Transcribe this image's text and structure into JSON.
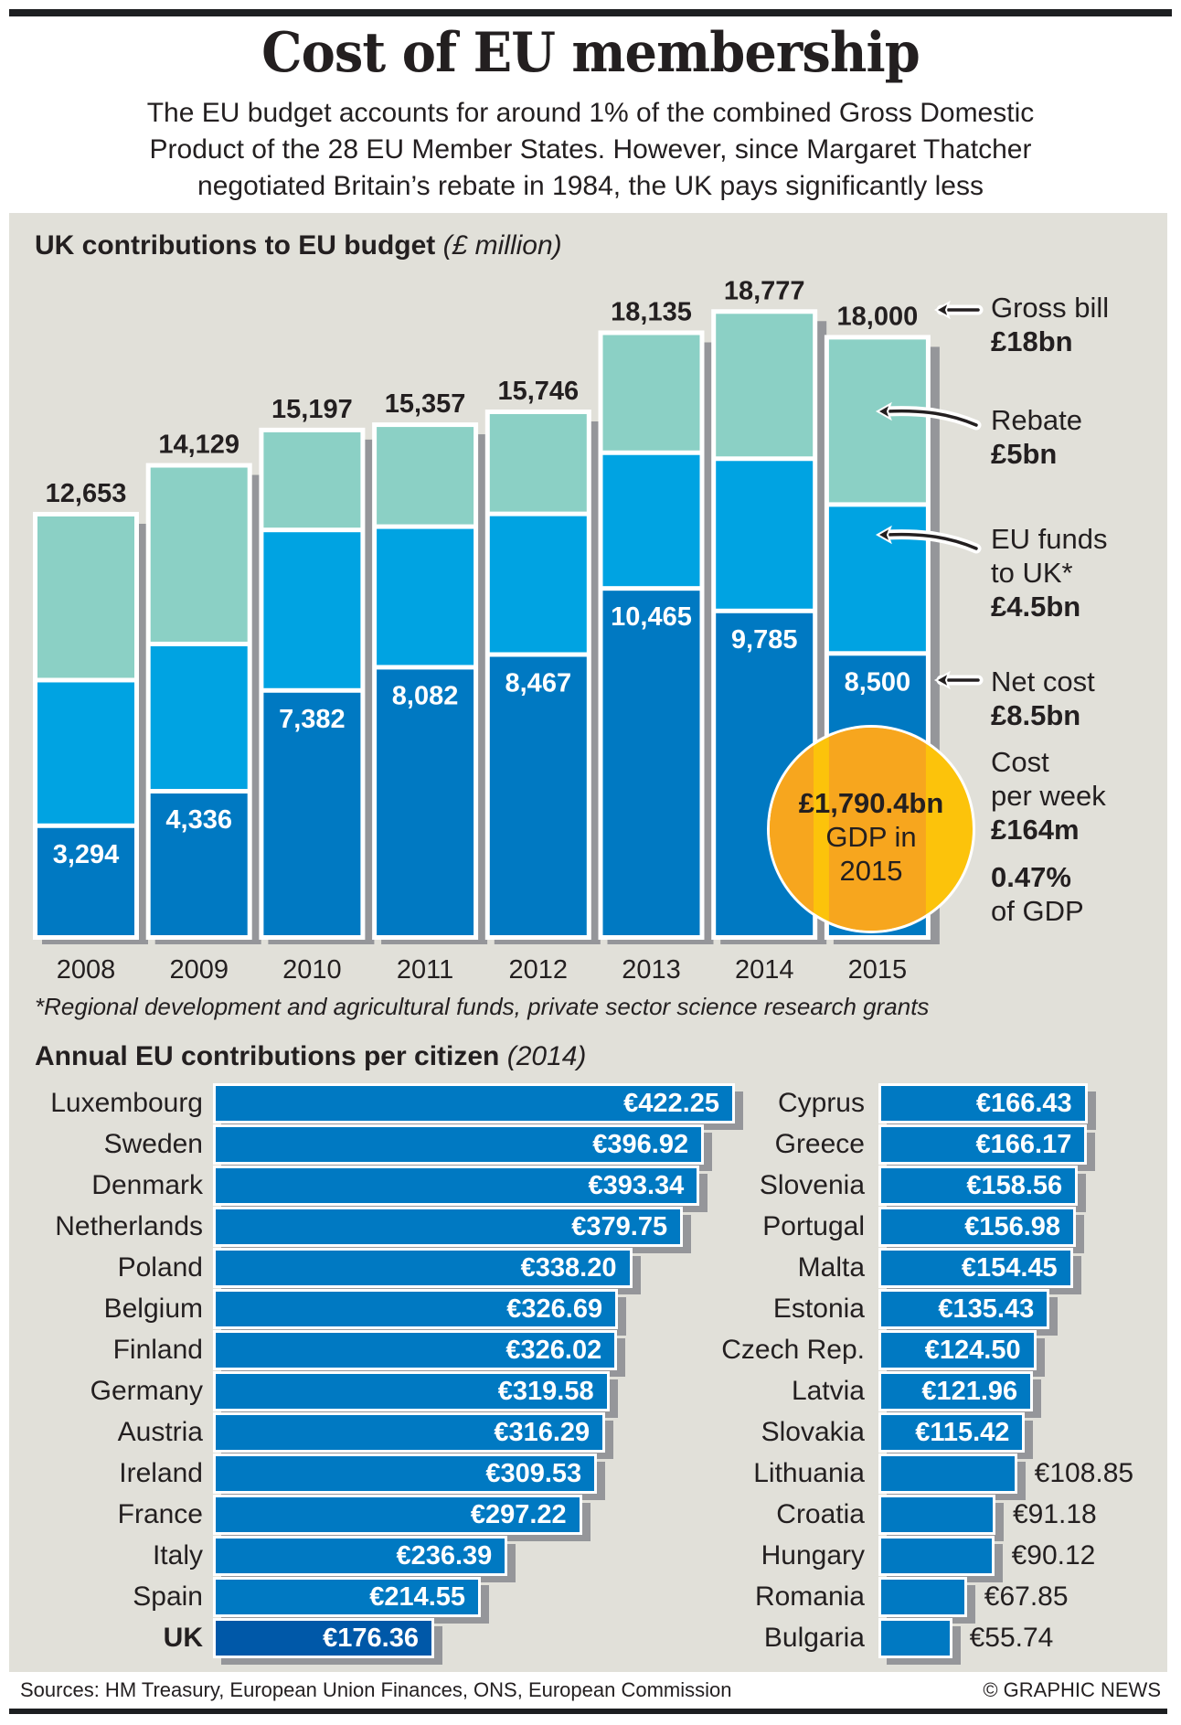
{
  "header": {
    "title": "Cost of EU membership",
    "subtitle_lines": [
      "The EU budget accounts for around 1% of the combined Gross Domestic",
      "Product of the 28 EU Member States. However, since Margaret Thatcher",
      "negotiated Britain’s rebate in 1984, the UK pays significantly less"
    ]
  },
  "colors": {
    "rebate": "#8bd0c5",
    "eu_funds": "#00a3e2",
    "net_cost": "#0079c2",
    "uk_highlight": "#0058a8",
    "panel": "#e1e0d9",
    "shadow": "#95969a",
    "bubble_yellow": "#fcc30b",
    "bubble_orange": "#f7a61e"
  },
  "chart_data": [
    {
      "type": "bar",
      "stacked": true,
      "title": "UK contributions to EU budget",
      "title_unit": "(£ million)",
      "categories": [
        "2008",
        "2009",
        "2010",
        "2011",
        "2012",
        "2013",
        "2014",
        "2015"
      ],
      "totals": [
        12653,
        14129,
        15197,
        15357,
        15746,
        18135,
        18777,
        18000
      ],
      "series": [
        {
          "name": "Net cost",
          "values": [
            3294,
            4336,
            7382,
            8082,
            8467,
            10465,
            9785,
            8500
          ]
        },
        {
          "name": "EU funds to UK*",
          "values_estimated": [
            4400,
            4450,
            4850,
            4250,
            4250,
            4100,
            4600,
            4500
          ]
        },
        {
          "name": "Rebate",
          "values_estimated": [
            4960,
            5340,
            2970,
            3030,
            3030,
            3570,
            4390,
            5000
          ]
        }
      ],
      "total_labels": [
        "12,653",
        "14,129",
        "15,197",
        "15,357",
        "15,746",
        "18,135",
        "18,777",
        "18,000"
      ],
      "net_labels": [
        "3,294",
        "4,336",
        "7,382",
        "8,082",
        "8,467",
        "10,465",
        "9,785",
        "8,500"
      ],
      "legend_placement": "right",
      "annotations": [
        {
          "label": "Gross bill",
          "value": "£18bn"
        },
        {
          "label": "Rebate",
          "value": "£5bn"
        },
        {
          "label_lines": [
            "EU funds",
            "to UK*"
          ],
          "value": "£4.5bn"
        },
        {
          "label": "Net cost",
          "value": "£8.5bn"
        },
        {
          "label_lines": [
            "Cost",
            "per week"
          ],
          "value": "£164m"
        },
        {
          "value": "0.47%",
          "label": "of GDP"
        }
      ],
      "bubble": {
        "value": "£1,790.4bn",
        "line2": "GDP in",
        "line3": "2015"
      },
      "footnote": "*Regional development and agricultural funds, private sector science research grants"
    },
    {
      "type": "bar",
      "orientation": "horizontal",
      "title": "Annual EU contributions per citizen",
      "title_unit": "(2014)",
      "currency": "€",
      "left_column": [
        {
          "country": "Luxembourg",
          "value": 422.25,
          "label": "€422.25"
        },
        {
          "country": "Sweden",
          "value": 396.92,
          "label": "€396.92"
        },
        {
          "country": "Denmark",
          "value": 393.34,
          "label": "€393.34"
        },
        {
          "country": "Netherlands",
          "value": 379.75,
          "label": "€379.75"
        },
        {
          "country": "Poland",
          "value": 338.2,
          "label": "€338.20"
        },
        {
          "country": "Belgium",
          "value": 326.69,
          "label": "€326.69"
        },
        {
          "country": "Finland",
          "value": 326.02,
          "label": "€326.02"
        },
        {
          "country": "Germany",
          "value": 319.58,
          "label": "€319.58"
        },
        {
          "country": "Austria",
          "value": 316.29,
          "label": "€316.29"
        },
        {
          "country": "Ireland",
          "value": 309.53,
          "label": "€309.53"
        },
        {
          "country": "France",
          "value": 297.22,
          "label": "€297.22"
        },
        {
          "country": "Italy",
          "value": 236.39,
          "label": "€236.39"
        },
        {
          "country": "Spain",
          "value": 214.55,
          "label": "€214.55"
        },
        {
          "country": "UK",
          "value": 176.36,
          "label": "€176.36",
          "highlight": true
        }
      ],
      "right_column": [
        {
          "country": "Cyprus",
          "value": 166.43,
          "label": "€166.43"
        },
        {
          "country": "Greece",
          "value": 166.17,
          "label": "€166.17"
        },
        {
          "country": "Slovenia",
          "value": 158.56,
          "label": "€158.56"
        },
        {
          "country": "Portugal",
          "value": 156.98,
          "label": "€156.98"
        },
        {
          "country": "Malta",
          "value": 154.45,
          "label": "€154.45"
        },
        {
          "country": "Estonia",
          "value": 135.43,
          "label": "€135.43"
        },
        {
          "country": "Czech Rep.",
          "value": 124.5,
          "label": "€124.50"
        },
        {
          "country": "Latvia",
          "value": 121.96,
          "label": "€121.96"
        },
        {
          "country": "Slovakia",
          "value": 115.42,
          "label": "€115.42"
        },
        {
          "country": "Lithuania",
          "value": 108.85,
          "label": "€108.85",
          "label_outside": true
        },
        {
          "country": "Croatia",
          "value": 91.18,
          "label": "€91.18",
          "label_outside": true
        },
        {
          "country": "Hungary",
          "value": 90.12,
          "label": "€90.12",
          "label_outside": true
        },
        {
          "country": "Romania",
          "value": 67.85,
          "label": "€67.85",
          "label_outside": true
        },
        {
          "country": "Bulgaria",
          "value": 55.74,
          "label": "€55.74",
          "label_outside": true
        }
      ]
    }
  ],
  "footer": {
    "sources": "Sources: HM Treasury, European Union Finances, ONS, European Commission",
    "credit": "© GRAPHIC NEWS"
  }
}
